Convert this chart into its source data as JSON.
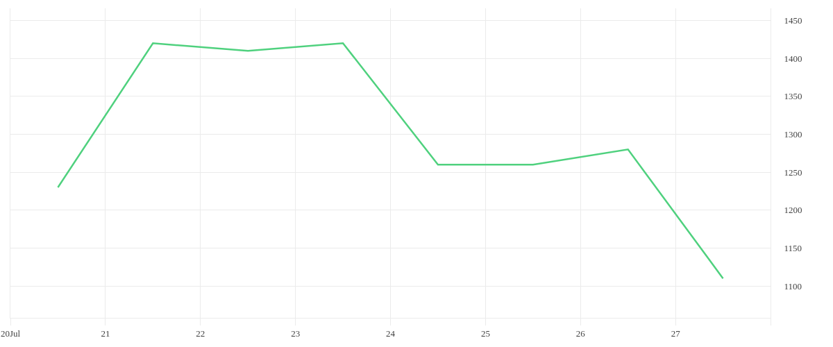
{
  "chart_data": {
    "type": "line",
    "x": [
      "--07-20T12:00",
      "--07-21T12:00",
      "--07-22T12:00",
      "--07-23T12:00",
      "--07-24T12:00",
      "--07-25T12:00",
      "--07-26T12:00",
      "--07-27T12:00"
    ],
    "values": [
      1230,
      1420,
      1410,
      1420,
      1260,
      1260,
      1280,
      1110
    ],
    "color": "#4fd17e",
    "xlim": [
      "--07-20",
      "--07-28"
    ],
    "xticks": [
      {
        "value": "--07-20",
        "label": "20Jul"
      },
      {
        "value": "--07-21",
        "label": "21"
      },
      {
        "value": "--07-22",
        "label": "22"
      },
      {
        "value": "--07-23",
        "label": "23"
      },
      {
        "value": "--07-24",
        "label": "24"
      },
      {
        "value": "--07-25",
        "label": "25"
      },
      {
        "value": "--07-26",
        "label": "26"
      },
      {
        "value": "--07-27",
        "label": "27"
      },
      {
        "value": "--07-28",
        "label": null
      }
    ],
    "ylim": [
      1058,
      1466
    ],
    "yticks": [
      1100,
      1150,
      1200,
      1250,
      1300,
      1350,
      1400,
      1450
    ],
    "grid": true
  }
}
